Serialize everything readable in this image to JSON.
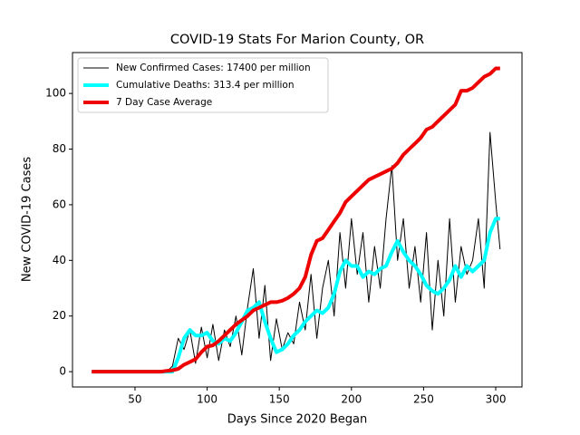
{
  "chart_data": {
    "type": "line",
    "title": "COVID-19 Stats For Marion County, OR",
    "xlabel": "Days Since 2020 Began",
    "ylabel": "New COVID-19 Cases",
    "xlim": [
      6.7,
      318.2
    ],
    "ylim": [
      -5.5,
      114.7
    ],
    "xticks": [
      50,
      100,
      150,
      200,
      250,
      300
    ],
    "yticks": [
      0,
      20,
      40,
      60,
      80,
      100
    ],
    "legend": "upper left",
    "x": [
      20,
      24,
      28,
      32,
      36,
      40,
      44,
      48,
      52,
      56,
      60,
      64,
      68,
      72,
      76,
      80,
      84,
      88,
      92,
      96,
      100,
      104,
      108,
      112,
      116,
      120,
      124,
      128,
      132,
      136,
      140,
      144,
      148,
      152,
      156,
      160,
      164,
      168,
      172,
      176,
      180,
      184,
      188,
      192,
      196,
      200,
      204,
      208,
      212,
      216,
      220,
      224,
      228,
      232,
      236,
      240,
      244,
      248,
      252,
      256,
      260,
      264,
      268,
      272,
      276,
      280,
      284,
      288,
      292,
      296,
      300,
      303
    ],
    "series": [
      {
        "name": "New Confirmed Cases: 17400 per million",
        "color": "#000000",
        "linewidth": 1,
        "values": [
          0,
          0,
          0,
          0,
          0,
          0,
          0,
          0,
          0,
          0,
          0,
          0,
          0,
          0,
          2,
          12,
          8,
          15,
          3,
          16,
          5,
          17,
          4,
          15,
          9,
          20,
          6,
          23,
          37,
          12,
          31,
          4,
          19,
          8,
          14,
          10,
          25,
          15,
          35,
          12,
          30,
          40,
          20,
          50,
          30,
          55,
          35,
          50,
          25,
          45,
          30,
          55,
          74,
          40,
          55,
          30,
          45,
          25,
          50,
          15,
          40,
          20,
          55,
          25,
          45,
          35,
          40,
          55,
          30,
          86,
          61,
          44
        ]
      },
      {
        "name": "Cumulative Deaths: 313.4 per million",
        "color": "#00ffff",
        "linewidth": 4,
        "values": [
          0,
          0,
          0,
          0,
          0,
          0,
          0,
          0,
          0,
          0,
          0,
          0,
          0,
          0,
          0,
          5,
          12,
          15,
          13,
          13,
          14,
          11,
          10,
          12,
          11,
          14,
          18,
          22,
          23,
          25,
          18,
          12,
          7,
          8,
          10,
          13,
          15,
          18,
          20,
          22,
          21,
          23,
          28,
          36,
          40,
          38,
          38,
          34,
          36,
          35,
          37,
          38,
          43,
          47,
          43,
          40,
          38,
          35,
          31,
          29,
          28,
          30,
          33,
          38,
          34,
          38,
          36,
          38,
          40,
          50,
          55,
          55
        ]
      },
      {
        "name": "7 Day Case Average",
        "color": "#ee0000",
        "linewidth": 4,
        "values": [
          0,
          0,
          0,
          0,
          0,
          0,
          0,
          0,
          0,
          0,
          0,
          0,
          0,
          0.3,
          0.5,
          1,
          2.5,
          3.5,
          4.5,
          7,
          9,
          9.5,
          11,
          13,
          15,
          17,
          18.5,
          20,
          22,
          23,
          24,
          25,
          25,
          25.5,
          26.5,
          28,
          30,
          34,
          42,
          47,
          48,
          51,
          54,
          57,
          61,
          63,
          65,
          67,
          69,
          70,
          71,
          72,
          73,
          75,
          78,
          80,
          82,
          84,
          87,
          88,
          90,
          92,
          94,
          96,
          101,
          101,
          102,
          104,
          106,
          107,
          109,
          109
        ]
      }
    ]
  }
}
